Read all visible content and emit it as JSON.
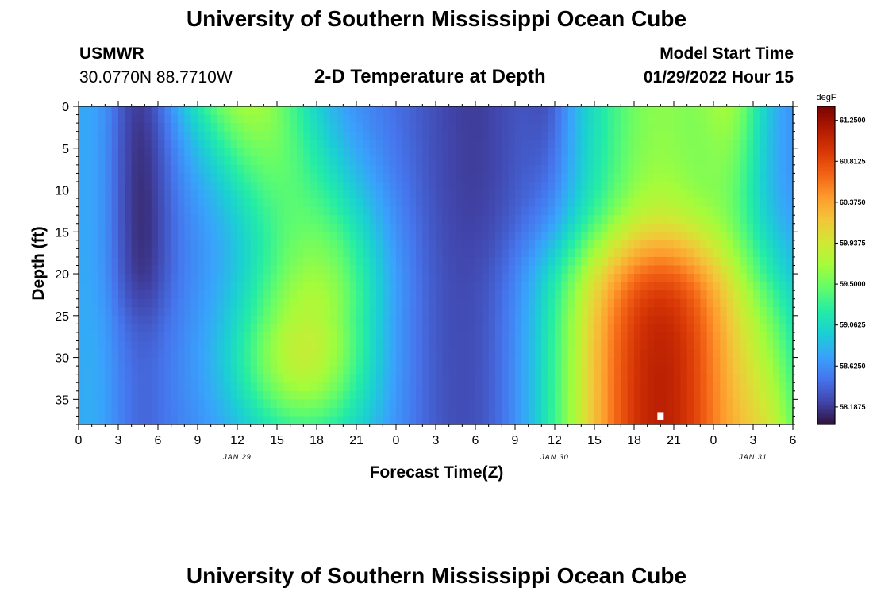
{
  "header": {
    "main_title": "University of Southern Mississippi Ocean Cube",
    "station_name": "USMWR",
    "coordinates": "30.0770N  88.7710W",
    "subtitle": "2-D Temperature at Depth",
    "model_start_label": "Model Start Time",
    "model_start_value": "01/29/2022 Hour 15"
  },
  "footer": {
    "repeated_title": "University of Southern Mississippi Ocean Cube"
  },
  "chart_data": {
    "type": "heatmap",
    "xlabel": "Forecast Time(Z)",
    "ylabel": "Depth (ft)",
    "x_tick_labels": [
      "0",
      "3",
      "6",
      "9",
      "12",
      "15",
      "18",
      "21",
      "0",
      "3",
      "6",
      "9",
      "12",
      "15",
      "18",
      "21",
      "0",
      "3",
      "6"
    ],
    "x_range_hours": [
      0,
      54
    ],
    "date_labels": [
      {
        "text": "JAN 29",
        "hour": 12
      },
      {
        "text": "JAN 30",
        "hour": 36
      },
      {
        "text": "JAN 31",
        "hour": 51
      }
    ],
    "y_tick_labels": [
      "0",
      "5",
      "10",
      "15",
      "20",
      "25",
      "30",
      "35"
    ],
    "y_range": [
      0,
      38
    ],
    "y_inverted": true,
    "colorbar": {
      "unit": "degF",
      "range": [
        58.0,
        61.4
      ],
      "labels": [
        "61.2500",
        "60.8125",
        "60.3750",
        "59.9375",
        "59.5000",
        "59.0625",
        "58.6250",
        "58.1875"
      ],
      "colormap": [
        "#30123b",
        "#4145ab",
        "#4675ed",
        "#39a2fc",
        "#1bcfd4",
        "#24eca6",
        "#61fc6c",
        "#a4fc3b",
        "#d1e834",
        "#f3c63a",
        "#fe9b2d",
        "#f36315",
        "#d93806",
        "#b11901",
        "#7a0402"
      ]
    },
    "marker": {
      "hour": 44,
      "depth": 37
    }
  }
}
